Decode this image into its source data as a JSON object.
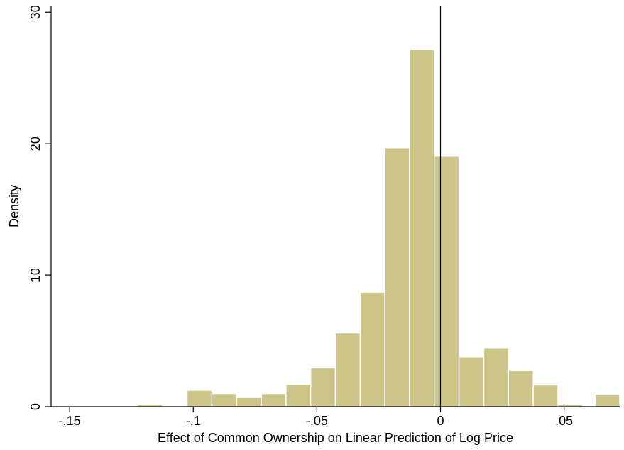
{
  "chart_data": {
    "type": "bar",
    "subtype": "histogram",
    "xlabel": "Effect of Common Ownership on Linear Prediction of Log Price",
    "ylabel": "Density",
    "xlim": [
      -0.1575,
      0.0725
    ],
    "ylim": [
      0,
      30.5
    ],
    "xticks": [
      {
        "value": -0.15,
        "label": "-.15"
      },
      {
        "value": -0.1,
        "label": "-.1"
      },
      {
        "value": -0.05,
        "label": "-.05"
      },
      {
        "value": 0,
        "label": "0"
      },
      {
        "value": 0.05,
        "label": ".05"
      }
    ],
    "yticks": [
      {
        "value": 0,
        "label": "0"
      },
      {
        "value": 10,
        "label": "10"
      },
      {
        "value": 20,
        "label": "20"
      },
      {
        "value": 30,
        "label": "30"
      }
    ],
    "reference_line_x": 0,
    "bar_color": "#CCC488",
    "bin_width": 0.01,
    "bins": [
      {
        "start": -0.1225,
        "end": -0.1125,
        "value": 0.2
      },
      {
        "start": -0.1025,
        "end": -0.0925,
        "value": 1.25
      },
      {
        "start": -0.0925,
        "end": -0.0825,
        "value": 1.0
      },
      {
        "start": -0.0825,
        "end": -0.0725,
        "value": 0.7
      },
      {
        "start": -0.0725,
        "end": -0.0625,
        "value": 1.0
      },
      {
        "start": -0.0625,
        "end": -0.0525,
        "value": 1.7
      },
      {
        "start": -0.0525,
        "end": -0.0425,
        "value": 2.95
      },
      {
        "start": -0.0425,
        "end": -0.0325,
        "value": 5.6
      },
      {
        "start": -0.0325,
        "end": -0.0225,
        "value": 8.7
      },
      {
        "start": -0.0225,
        "end": -0.0125,
        "value": 19.7
      },
      {
        "start": -0.0125,
        "end": -0.0025,
        "value": 27.15
      },
      {
        "start": -0.0025,
        "end": 0.0075,
        "value": 19.05
      },
      {
        "start": 0.0075,
        "end": 0.0175,
        "value": 3.8
      },
      {
        "start": 0.0175,
        "end": 0.0275,
        "value": 4.45
      },
      {
        "start": 0.0275,
        "end": 0.0375,
        "value": 2.75
      },
      {
        "start": 0.0375,
        "end": 0.0475,
        "value": 1.65
      },
      {
        "start": 0.0475,
        "end": 0.0575,
        "value": 0.15
      },
      {
        "start": 0.0625,
        "end": 0.0725,
        "value": 0.9
      }
    ]
  }
}
